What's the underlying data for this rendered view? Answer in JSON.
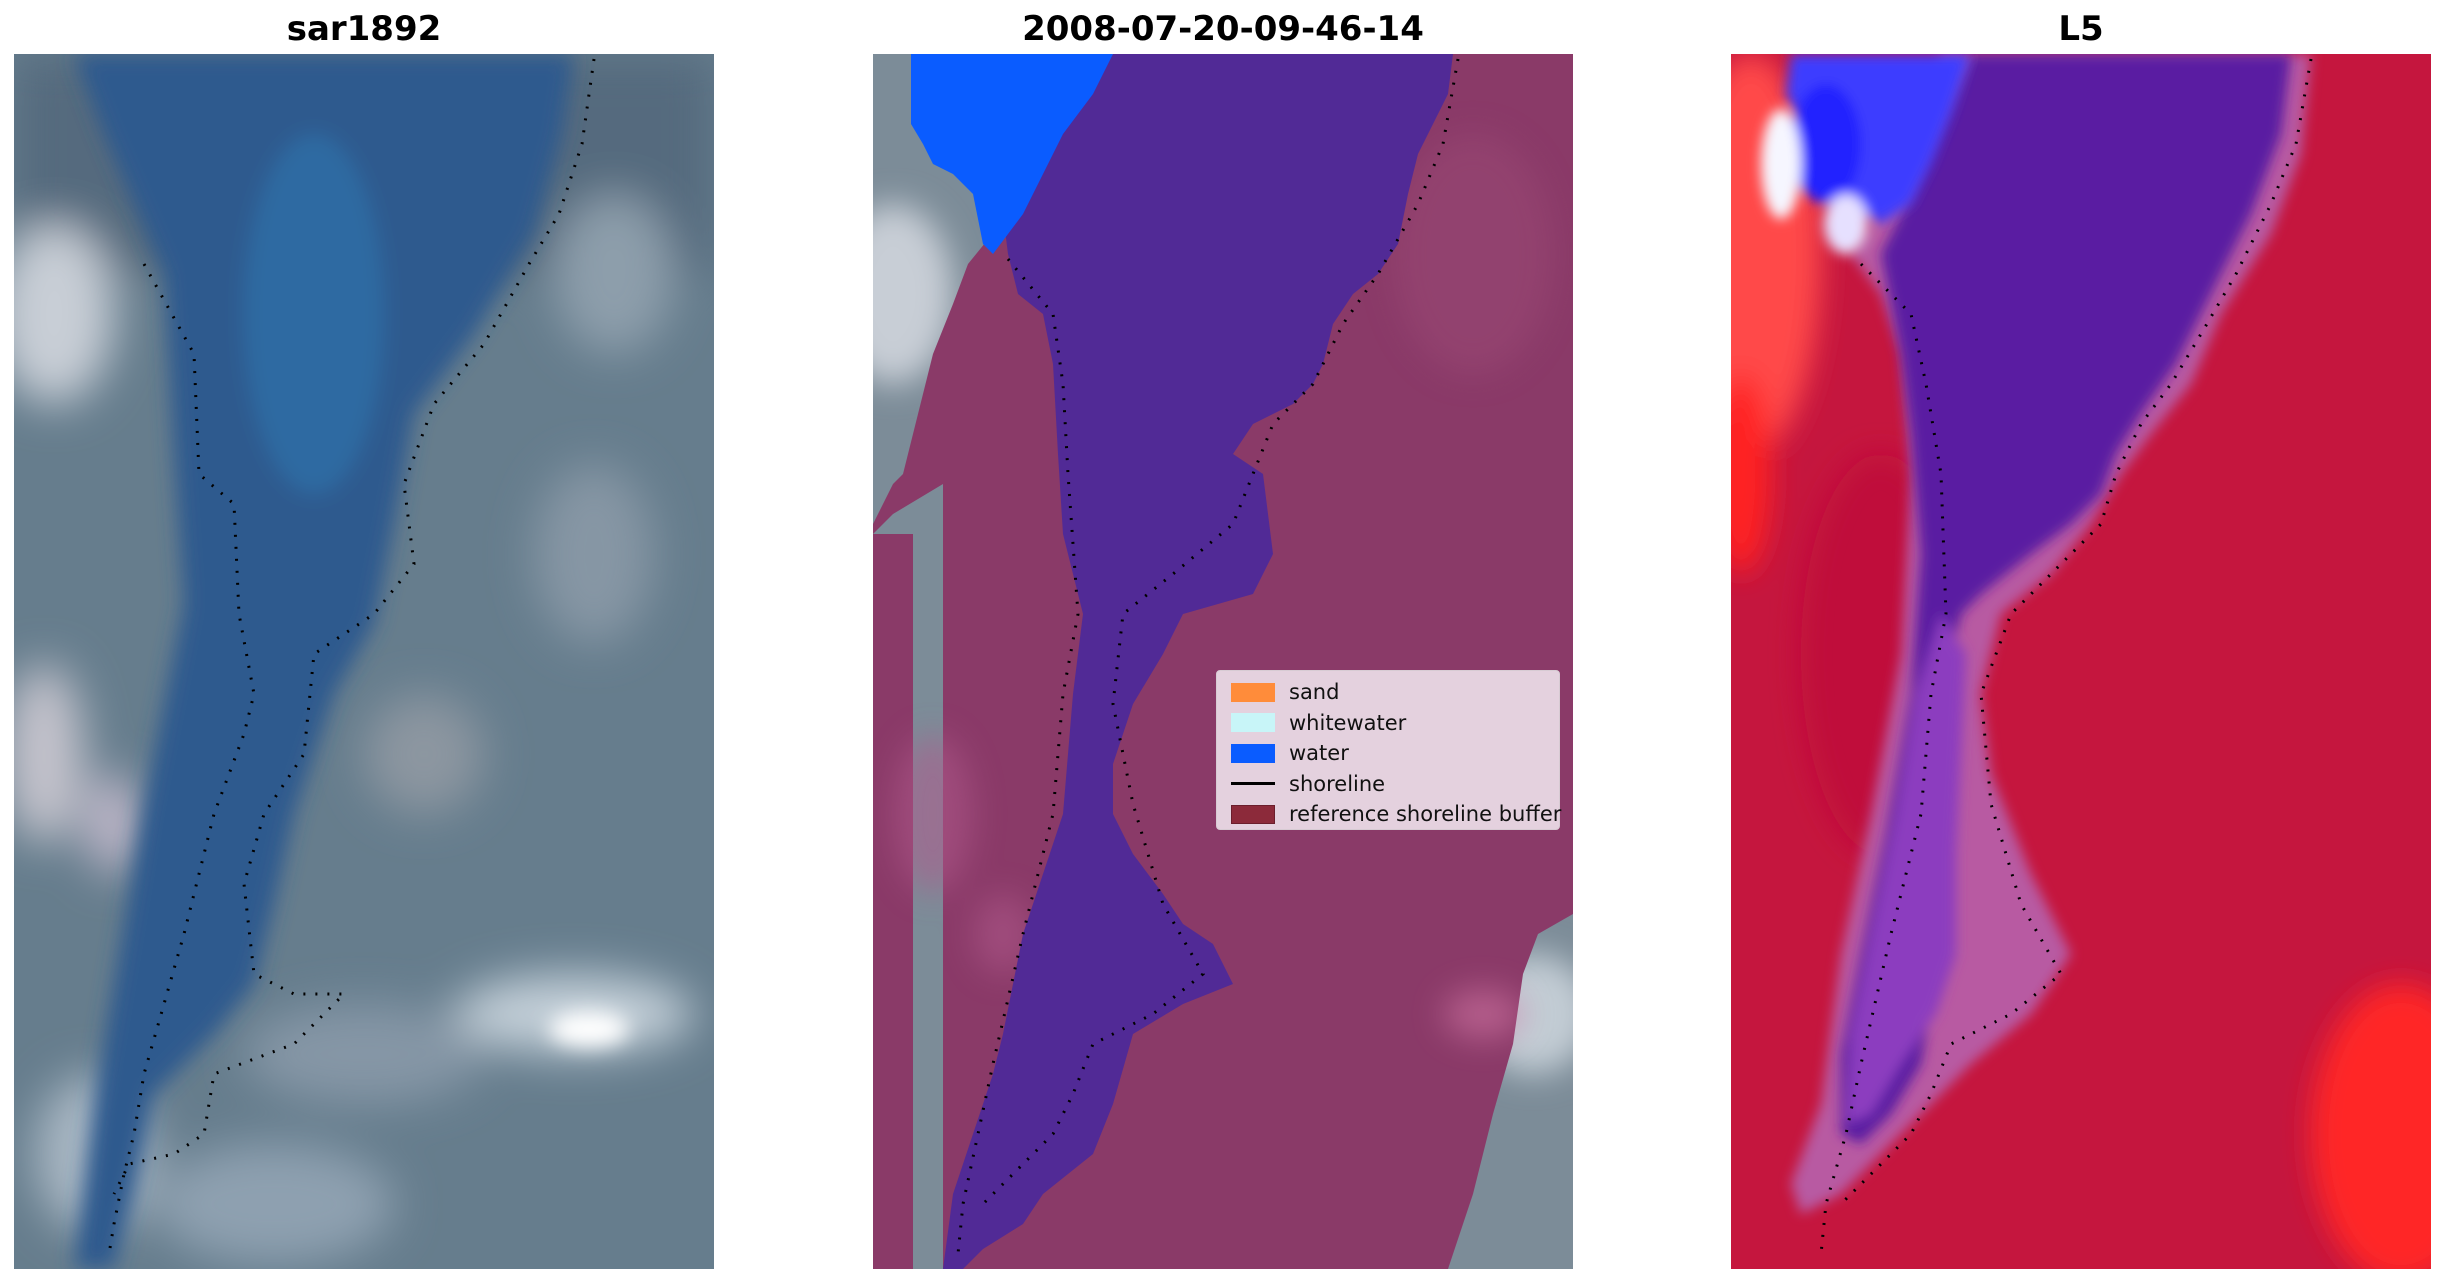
{
  "panels": [
    {
      "title": "sar1892"
    },
    {
      "title": "2008-07-20-09-46-14"
    },
    {
      "title": "L5"
    }
  ],
  "legend": {
    "items": [
      {
        "label": "sand",
        "color": "#ff8c3a",
        "kind": "patch"
      },
      {
        "label": "whitewater",
        "color": "#c8f5f8",
        "kind": "patch"
      },
      {
        "label": "water",
        "color": "#0a5cff",
        "kind": "patch"
      },
      {
        "label": "shoreline",
        "color": "#000000",
        "kind": "line"
      },
      {
        "label": "reference shoreline buffer",
        "color": "#8c2a3a",
        "kind": "patch"
      }
    ]
  },
  "colors": {
    "rgb_land": "#6f8596",
    "rgb_water": "#2f5e93",
    "class_land": "#8a3a68",
    "class_water": "#512a96",
    "class_water_blue": "#0a5cff",
    "mndwi_land": "#c5163e",
    "mndwi_water": "#5a1aa2",
    "mndwi_hot": "#ff2323"
  }
}
